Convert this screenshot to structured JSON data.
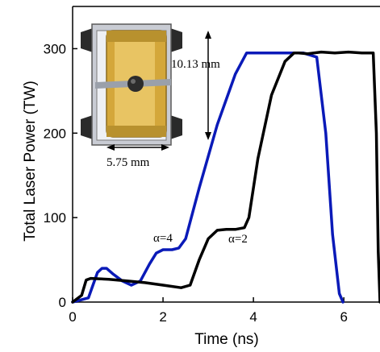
{
  "chart_data": {
    "type": "line",
    "xlabel": "Time (ns)",
    "ylabel": "Total Laser Power (TW)",
    "xlim": [
      0,
      6.8
    ],
    "ylim": [
      0,
      350
    ],
    "xticks": [
      "0",
      "2",
      "4",
      "6"
    ],
    "yticks": [
      "0",
      "100",
      "200",
      "300"
    ],
    "grid": false,
    "series": [
      {
        "color": "#0a1ab8",
        "x": [
          0,
          0.35,
          0.45,
          0.55,
          0.65,
          0.75,
          0.9,
          1.1,
          1.3,
          1.5,
          1.7,
          1.85,
          2.0,
          2.2,
          2.35,
          2.5,
          2.8,
          3.2,
          3.6,
          3.85,
          4.0,
          4.3,
          4.7,
          5.1,
          5.4,
          5.6,
          5.75,
          5.9,
          5.98
        ],
        "y": [
          0,
          5,
          20,
          35,
          40,
          40,
          33,
          25,
          20,
          25,
          45,
          58,
          62,
          62,
          64,
          75,
          135,
          210,
          270,
          295,
          295,
          295,
          295,
          295,
          290,
          200,
          80,
          10,
          0
        ]
      },
      {
        "color": "#000000",
        "x": [
          0,
          0.2,
          0.3,
          0.4,
          0.8,
          1.2,
          1.6,
          2.0,
          2.4,
          2.6,
          2.8,
          3.0,
          3.2,
          3.4,
          3.6,
          3.8,
          3.9,
          4.1,
          4.4,
          4.7,
          4.9,
          5.0,
          5.2,
          5.5,
          5.8,
          6.1,
          6.4,
          6.65,
          6.72,
          6.76,
          6.8
        ],
        "y": [
          0,
          8,
          26,
          28,
          27,
          25,
          23,
          20,
          17,
          20,
          50,
          75,
          85,
          86,
          86,
          88,
          100,
          170,
          245,
          285,
          295,
          295,
          294,
          296,
          295,
          296,
          295,
          295,
          200,
          60,
          0
        ]
      }
    ],
    "annotations": [
      "α=4",
      "α=2",
      "10.13 mm",
      "5.75 mm"
    ]
  }
}
